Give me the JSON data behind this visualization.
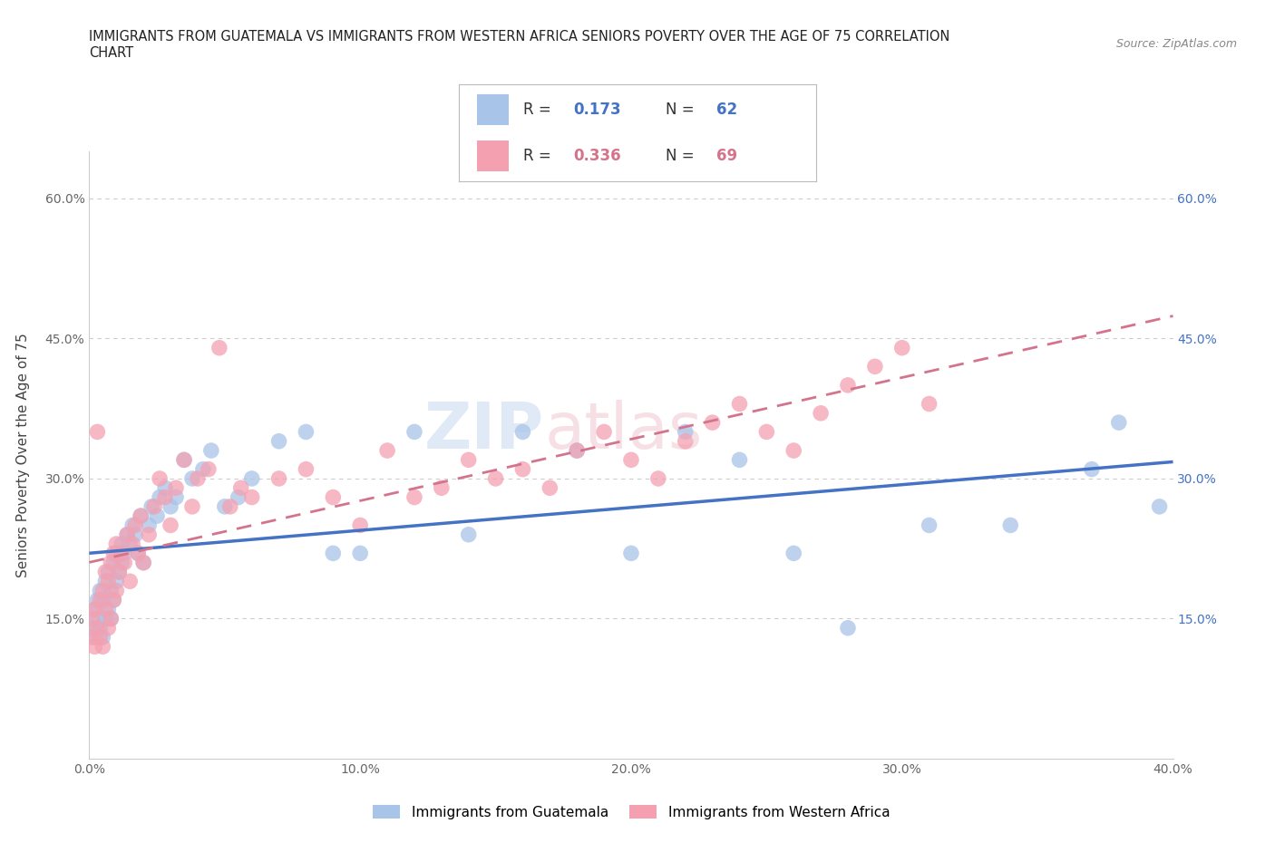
{
  "title_line1": "IMMIGRANTS FROM GUATEMALA VS IMMIGRANTS FROM WESTERN AFRICA SENIORS POVERTY OVER THE AGE OF 75 CORRELATION",
  "title_line2": "CHART",
  "source": "Source: ZipAtlas.com",
  "ylabel": "Seniors Poverty Over the Age of 75",
  "xlim": [
    0.0,
    0.4
  ],
  "ylim": [
    0.0,
    0.65
  ],
  "xticks": [
    0.0,
    0.05,
    0.1,
    0.15,
    0.2,
    0.25,
    0.3,
    0.35,
    0.4
  ],
  "xticklabels": [
    "0.0%",
    "",
    "10.0%",
    "",
    "20.0%",
    "",
    "30.0%",
    "",
    "40.0%"
  ],
  "yticks": [
    0.15,
    0.3,
    0.45,
    0.6
  ],
  "yticklabels": [
    "15.0%",
    "30.0%",
    "45.0%",
    "60.0%"
  ],
  "blue_color": "#A8C4E8",
  "pink_color": "#F4A0B0",
  "blue_line_color": "#4472C4",
  "pink_line_color": "#D4748C",
  "R_blue": 0.173,
  "N_blue": 62,
  "R_pink": 0.336,
  "N_pink": 69,
  "legend_label_blue": "Immigrants from Guatemala",
  "legend_label_pink": "Immigrants from Western Africa",
  "watermark_zip": "ZIP",
  "watermark_atlas": "atlas",
  "background_color": "#ffffff",
  "grid_color": "#dddddd",
  "guatemala_x": [
    0.001,
    0.002,
    0.002,
    0.003,
    0.003,
    0.004,
    0.004,
    0.005,
    0.005,
    0.006,
    0.006,
    0.007,
    0.007,
    0.008,
    0.008,
    0.009,
    0.009,
    0.01,
    0.01,
    0.011,
    0.012,
    0.012,
    0.013,
    0.014,
    0.015,
    0.016,
    0.017,
    0.018,
    0.019,
    0.02,
    0.022,
    0.023,
    0.025,
    0.026,
    0.028,
    0.03,
    0.032,
    0.035,
    0.038,
    0.042,
    0.045,
    0.05,
    0.055,
    0.06,
    0.07,
    0.08,
    0.09,
    0.1,
    0.12,
    0.14,
    0.16,
    0.18,
    0.2,
    0.22,
    0.24,
    0.26,
    0.28,
    0.31,
    0.34,
    0.37,
    0.38,
    0.395
  ],
  "guatemala_y": [
    0.14,
    0.13,
    0.16,
    0.15,
    0.17,
    0.14,
    0.18,
    0.13,
    0.17,
    0.15,
    0.19,
    0.16,
    0.2,
    0.15,
    0.18,
    0.17,
    0.21,
    0.19,
    0.22,
    0.2,
    0.23,
    0.21,
    0.22,
    0.24,
    0.23,
    0.25,
    0.24,
    0.22,
    0.26,
    0.21,
    0.25,
    0.27,
    0.26,
    0.28,
    0.29,
    0.27,
    0.28,
    0.32,
    0.3,
    0.31,
    0.33,
    0.27,
    0.28,
    0.3,
    0.34,
    0.35,
    0.22,
    0.22,
    0.35,
    0.24,
    0.35,
    0.33,
    0.22,
    0.35,
    0.32,
    0.22,
    0.14,
    0.25,
    0.25,
    0.31,
    0.36,
    0.27
  ],
  "western_africa_x": [
    0.001,
    0.001,
    0.002,
    0.002,
    0.003,
    0.003,
    0.004,
    0.004,
    0.005,
    0.005,
    0.006,
    0.006,
    0.007,
    0.007,
    0.008,
    0.008,
    0.009,
    0.009,
    0.01,
    0.01,
    0.011,
    0.012,
    0.013,
    0.014,
    0.015,
    0.016,
    0.017,
    0.018,
    0.019,
    0.02,
    0.022,
    0.024,
    0.026,
    0.028,
    0.03,
    0.032,
    0.035,
    0.038,
    0.04,
    0.044,
    0.048,
    0.052,
    0.056,
    0.06,
    0.07,
    0.08,
    0.09,
    0.1,
    0.11,
    0.12,
    0.13,
    0.14,
    0.15,
    0.16,
    0.17,
    0.18,
    0.19,
    0.2,
    0.21,
    0.22,
    0.23,
    0.24,
    0.25,
    0.26,
    0.27,
    0.28,
    0.29,
    0.3,
    0.31
  ],
  "western_africa_y": [
    0.13,
    0.15,
    0.12,
    0.16,
    0.14,
    0.35,
    0.13,
    0.17,
    0.12,
    0.18,
    0.16,
    0.2,
    0.14,
    0.19,
    0.15,
    0.21,
    0.17,
    0.22,
    0.18,
    0.23,
    0.2,
    0.22,
    0.21,
    0.24,
    0.19,
    0.23,
    0.25,
    0.22,
    0.26,
    0.21,
    0.24,
    0.27,
    0.3,
    0.28,
    0.25,
    0.29,
    0.32,
    0.27,
    0.3,
    0.31,
    0.44,
    0.27,
    0.29,
    0.28,
    0.3,
    0.31,
    0.28,
    0.25,
    0.33,
    0.28,
    0.29,
    0.32,
    0.3,
    0.31,
    0.29,
    0.33,
    0.35,
    0.32,
    0.3,
    0.34,
    0.36,
    0.38,
    0.35,
    0.33,
    0.37,
    0.4,
    0.42,
    0.44,
    0.38
  ]
}
